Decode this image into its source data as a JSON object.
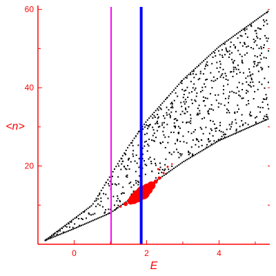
{
  "chart_data": {
    "type": "scatter",
    "title": "",
    "xlabel": "E",
    "ylabel": "<n>",
    "xlim": [
      -1,
      5.4
    ],
    "ylim": [
      0,
      61
    ],
    "x_ticks": [
      0,
      2,
      4
    ],
    "y_ticks": [
      20,
      40,
      60
    ],
    "grid": false,
    "colors": {
      "axes": "#ff0000",
      "dots": "#000000",
      "highlight": "#ff0000",
      "line_magenta": "#ff00ff",
      "line_blue": "#0000ff"
    },
    "vertical_lines": [
      {
        "x": 1.02,
        "color": "#ff00ff"
      },
      {
        "x": 1.85,
        "color": "#0000ff"
      }
    ],
    "highlight_points": [
      {
        "x": 1.28,
        "y": 9.6,
        "r": 1.5
      },
      {
        "x": 1.42,
        "y": 10.3,
        "r": 3
      },
      {
        "x": 1.56,
        "y": 11.0,
        "r": 5
      },
      {
        "x": 1.64,
        "y": 11.5,
        "r": 7
      },
      {
        "x": 1.76,
        "y": 12.3,
        "r": 9
      },
      {
        "x": 1.9,
        "y": 13.2,
        "r": 10
      },
      {
        "x": 2.02,
        "y": 14.1,
        "r": 8
      },
      {
        "x": 2.13,
        "y": 15.0,
        "r": 6
      },
      {
        "x": 2.25,
        "y": 16.0,
        "r": 3
      },
      {
        "x": 2.35,
        "y": 16.9,
        "r": 2.5
      },
      {
        "x": 2.47,
        "y": 18.2,
        "r": 1.5
      },
      {
        "x": 2.32,
        "y": 19.2,
        "r": 1.5
      },
      {
        "x": 2.58,
        "y": 19.8,
        "r": 1.5
      },
      {
        "x": 2.7,
        "y": 20.5,
        "r": 1.2
      }
    ],
    "dot_envelope": {
      "x_min": -0.8,
      "x_max": 5.35,
      "upper_edge": [
        [
          -0.8,
          1.0
        ],
        [
          0.5,
          10.0
        ],
        [
          1.0,
          17.5
        ],
        [
          1.5,
          25.0
        ],
        [
          2.0,
          31.5
        ],
        [
          3.0,
          42.0
        ],
        [
          4.0,
          50.5
        ],
        [
          5.35,
          59.5
        ]
      ],
      "lower_edge": [
        [
          -0.8,
          1.0
        ],
        [
          0.0,
          4.0
        ],
        [
          1.0,
          8.0
        ],
        [
          2.0,
          14.5
        ],
        [
          3.0,
          21.0
        ],
        [
          4.0,
          26.5
        ],
        [
          5.35,
          32.0
        ]
      ]
    }
  }
}
